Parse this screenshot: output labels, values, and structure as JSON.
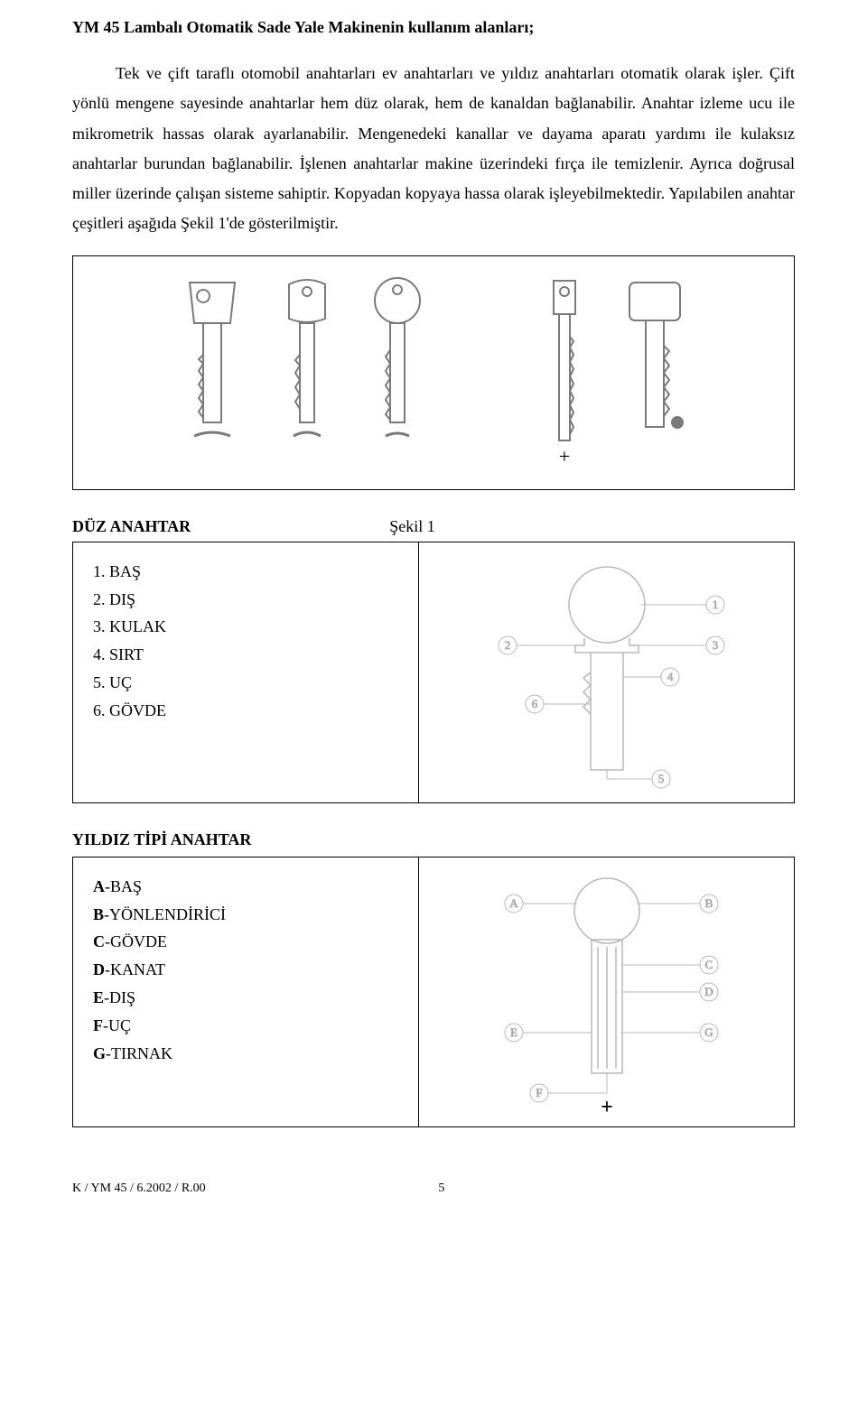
{
  "title": "YM 45 Lambalı Otomatik Sade Yale Makinenin kullanım alanları;",
  "paragraph": "Tek ve çift taraflı otomobil anahtarları ev anahtarları ve yıldız anahtarları otomatik olarak işler. Çift yönlü mengene sayesinde anahtarlar hem düz olarak, hem de kanaldan bağlanabilir. Anahtar izleme ucu ile mikrometrik hassas olarak ayarlanabilir. Mengenedeki kanallar ve dayama aparatı yardımı ile kulaksız anahtarlar burundan bağlanabilir. İşlenen anahtarlar makine üzerindeki fırça ile temizlenir. Ayrıca doğrusal miller üzerinde çalışan sisteme sahiptir. Kopyadan kopyaya hassa olarak işleyebilmektedir. Yapılabilen anahtar çeşitleri aşağıda Şekil 1'de gösterilmiştir.",
  "figure1_caption": "Şekil 1",
  "section1_label": "DÜZ ANAHTAR",
  "flat_key_parts": {
    "1": "BAŞ",
    "2": "DIŞ",
    "3": "KULAK",
    "4": "SIRT",
    "5": "UÇ",
    "6": "GÖVDE"
  },
  "section2_label": "YILDIZ TİPİ ANAHTAR",
  "star_key_parts": {
    "A": "BAŞ",
    "B": "YÖNLENDİRİCİ",
    "C": "GÖVDE",
    "D": "KANAT",
    "E": "DIŞ",
    "F": "UÇ",
    "G": "TIRNAK"
  },
  "diagram_labels": {
    "flat": [
      "1",
      "2",
      "3",
      "4",
      "5",
      "6"
    ],
    "star": [
      "A",
      "B",
      "C",
      "D",
      "E",
      "F",
      "G"
    ]
  },
  "footer_left": "K / YM 45 / 6.2002 / R.00",
  "footer_page": "5",
  "colors": {
    "text": "#000000",
    "line_art": "#b8b8b8",
    "line_art_dark": "#7a7a7a",
    "background": "#ffffff"
  }
}
